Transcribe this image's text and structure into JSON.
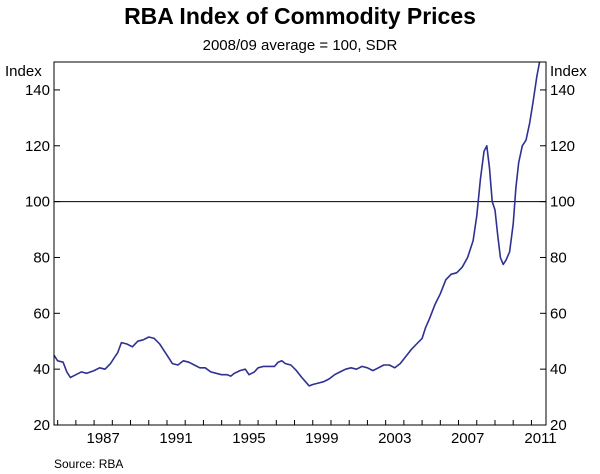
{
  "chart_data": {
    "type": "line",
    "title": "RBA Index of Commodity Prices",
    "subtitle": "2008/09 average = 100, SDR",
    "ylabel_left": "Index",
    "ylabel_right": "Index",
    "source": "Source: RBA",
    "ylim": [
      20,
      150
    ],
    "xlim": [
      1984.8,
      2011.8
    ],
    "y_ticks": [
      20,
      40,
      60,
      80,
      100,
      120,
      140
    ],
    "x_ticks": [
      1987,
      1991,
      1995,
      1999,
      2003,
      2007,
      2011
    ],
    "x_tick_labels": [
      "1987",
      "1991",
      "1995",
      "1999",
      "2003",
      "2007",
      "2011"
    ],
    "reference_line": 100,
    "series": [
      {
        "name": "RBA Index of Commodity Prices",
        "color": "#2e3192",
        "points": [
          [
            1984.8,
            45
          ],
          [
            1985.0,
            43
          ],
          [
            1985.3,
            42.5
          ],
          [
            1985.5,
            39
          ],
          [
            1985.7,
            37
          ],
          [
            1986.0,
            38
          ],
          [
            1986.3,
            39
          ],
          [
            1986.6,
            38.5
          ],
          [
            1987.0,
            39.5
          ],
          [
            1987.3,
            40.5
          ],
          [
            1987.6,
            40
          ],
          [
            1987.9,
            42
          ],
          [
            1988.1,
            44
          ],
          [
            1988.3,
            46
          ],
          [
            1988.5,
            49.5
          ],
          [
            1988.8,
            49
          ],
          [
            1989.1,
            48
          ],
          [
            1989.4,
            50
          ],
          [
            1989.7,
            50.5
          ],
          [
            1990.0,
            51.5
          ],
          [
            1990.3,
            51
          ],
          [
            1990.6,
            49
          ],
          [
            1990.9,
            46
          ],
          [
            1991.0,
            45
          ],
          [
            1991.3,
            42
          ],
          [
            1991.6,
            41.5
          ],
          [
            1991.9,
            43
          ],
          [
            1992.2,
            42.5
          ],
          [
            1992.5,
            41.5
          ],
          [
            1992.8,
            40.5
          ],
          [
            1993.1,
            40.5
          ],
          [
            1993.4,
            39
          ],
          [
            1993.7,
            38.5
          ],
          [
            1994.0,
            38
          ],
          [
            1994.3,
            38
          ],
          [
            1994.5,
            37.5
          ],
          [
            1994.7,
            38.5
          ],
          [
            1995.0,
            39.5
          ],
          [
            1995.3,
            40
          ],
          [
            1995.5,
            38
          ],
          [
            1995.8,
            39
          ],
          [
            1996.0,
            40.5
          ],
          [
            1996.3,
            41
          ],
          [
            1996.6,
            41
          ],
          [
            1996.9,
            41
          ],
          [
            1997.1,
            42.5
          ],
          [
            1997.3,
            43
          ],
          [
            1997.5,
            42
          ],
          [
            1997.8,
            41.5
          ],
          [
            1998.1,
            39.5
          ],
          [
            1998.4,
            37
          ],
          [
            1998.6,
            35.5
          ],
          [
            1998.8,
            34
          ],
          [
            1999.0,
            34.5
          ],
          [
            1999.3,
            35
          ],
          [
            1999.6,
            35.5
          ],
          [
            1999.9,
            36.5
          ],
          [
            2000.2,
            38
          ],
          [
            2000.5,
            39
          ],
          [
            2000.8,
            40
          ],
          [
            2001.1,
            40.5
          ],
          [
            2001.4,
            40
          ],
          [
            2001.7,
            41
          ],
          [
            2002.0,
            40.5
          ],
          [
            2002.3,
            39.5
          ],
          [
            2002.6,
            40.5
          ],
          [
            2002.9,
            41.5
          ],
          [
            2003.2,
            41.5
          ],
          [
            2003.5,
            40.5
          ],
          [
            2003.8,
            42
          ],
          [
            2004.1,
            44.5
          ],
          [
            2004.4,
            47
          ],
          [
            2004.7,
            49
          ],
          [
            2005.0,
            51
          ],
          [
            2005.2,
            55
          ],
          [
            2005.4,
            58
          ],
          [
            2005.7,
            63
          ],
          [
            2006.0,
            67
          ],
          [
            2006.3,
            72
          ],
          [
            2006.6,
            74
          ],
          [
            2006.9,
            74.5
          ],
          [
            2007.2,
            76.5
          ],
          [
            2007.5,
            80
          ],
          [
            2007.8,
            86
          ],
          [
            2008.0,
            95
          ],
          [
            2008.2,
            108
          ],
          [
            2008.4,
            118
          ],
          [
            2008.55,
            120
          ],
          [
            2008.7,
            112
          ],
          [
            2008.85,
            100
          ],
          [
            2009.0,
            97
          ],
          [
            2009.15,
            88
          ],
          [
            2009.3,
            80
          ],
          [
            2009.45,
            77.5
          ],
          [
            2009.6,
            79
          ],
          [
            2009.8,
            82
          ],
          [
            2010.0,
            92
          ],
          [
            2010.15,
            105
          ],
          [
            2010.3,
            114
          ],
          [
            2010.5,
            120
          ],
          [
            2010.7,
            122
          ],
          [
            2010.9,
            128
          ],
          [
            2011.1,
            136
          ],
          [
            2011.3,
            145
          ],
          [
            2011.45,
            150
          ]
        ]
      }
    ]
  }
}
